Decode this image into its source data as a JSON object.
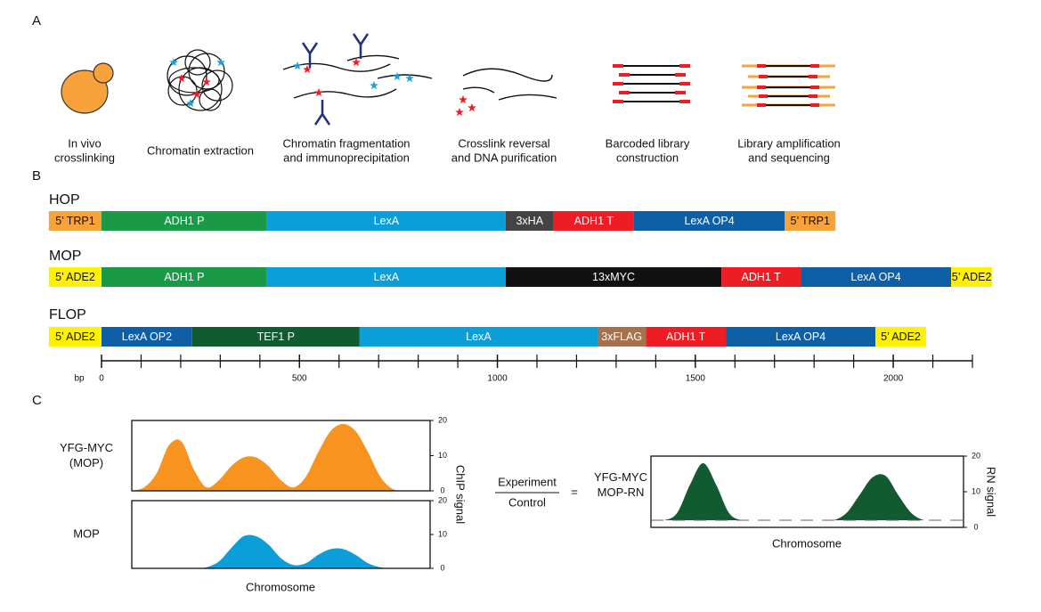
{
  "panels": {
    "a": "A",
    "b": "B",
    "c": "C"
  },
  "workflow": [
    {
      "lines": [
        "In vivo",
        "crosslinking"
      ]
    },
    {
      "lines": [
        "Chromatin extraction"
      ]
    },
    {
      "lines": [
        "Chromatin fragmentation",
        "and immunoprecipitation"
      ]
    },
    {
      "lines": [
        "Crosslink reversal",
        "and DNA purification"
      ]
    },
    {
      "lines": [
        "Barcoded library",
        "construction"
      ]
    },
    {
      "lines": [
        "Library amplification",
        "and sequencing"
      ]
    }
  ],
  "constructs": {
    "items": [
      {
        "name": "HOP",
        "segments": [
          {
            "label": "5’ TRP1",
            "start": -133,
            "end": 0,
            "color": "#f7a23b",
            "text_color": "#111"
          },
          {
            "label": "ADH1 P",
            "start": 0,
            "end": 418,
            "color": "#1a9a47",
            "text_color": "#fff"
          },
          {
            "label": "LexA",
            "start": 418,
            "end": 1021,
            "color": "#0b9ed9",
            "text_color": "#fff"
          },
          {
            "label": "3xHA",
            "start": 1021,
            "end": 1142,
            "color": "#444444",
            "text_color": "#fff"
          },
          {
            "label": "ADH1 T",
            "start": 1142,
            "end": 1345,
            "color": "#ee1c25",
            "text_color": "#fff"
          },
          {
            "label": "LexA OP4",
            "start": 1345,
            "end": 1726,
            "color": "#0f5fa6",
            "text_color": "#fff"
          },
          {
            "label": "5’ TRP1",
            "start": 1726,
            "end": 1854,
            "color": "#f7a23b",
            "text_color": "#111"
          }
        ]
      },
      {
        "name": "MOP",
        "segments": [
          {
            "label": "5’ ADE2",
            "start": -133,
            "end": 0,
            "color": "#fff200",
            "text_color": "#111"
          },
          {
            "label": "ADH1 P",
            "start": 0,
            "end": 418,
            "color": "#1a9a47",
            "text_color": "#fff"
          },
          {
            "label": "LexA",
            "start": 418,
            "end": 1021,
            "color": "#0b9ed9",
            "text_color": "#fff"
          },
          {
            "label": "13xMYC",
            "start": 1021,
            "end": 1566,
            "color": "#111111",
            "text_color": "#fff"
          },
          {
            "label": "ADH1 T",
            "start": 1566,
            "end": 1766,
            "color": "#ee1c25",
            "text_color": "#fff"
          },
          {
            "label": "LexA OP4",
            "start": 1766,
            "end": 2146,
            "color": "#0f5fa6",
            "text_color": "#fff"
          },
          {
            "label": "5’ ADE2",
            "start": 2146,
            "end": 2250,
            "color": "#fff200",
            "text_color": "#111"
          }
        ]
      },
      {
        "name": "FLOP",
        "segments": [
          {
            "label": "5’ ADE2",
            "start": -133,
            "end": 0,
            "color": "#fff200",
            "text_color": "#111"
          },
          {
            "label": "LexA OP2",
            "start": 0,
            "end": 229,
            "color": "#0f5fa6",
            "text_color": "#fff"
          },
          {
            "label": "TEF1 P",
            "start": 229,
            "end": 652,
            "color": "#125a2f",
            "text_color": "#fff"
          },
          {
            "label": "LexA",
            "start": 652,
            "end": 1253,
            "color": "#0b9ed9",
            "text_color": "#fff"
          },
          {
            "label": "3xFLAG",
            "start": 1253,
            "end": 1375,
            "color": "#a5724d",
            "text_color": "#fff"
          },
          {
            "label": "ADH1 T",
            "start": 1375,
            "end": 1577,
            "color": "#ee1c25",
            "text_color": "#fff"
          },
          {
            "label": "LexA OP4",
            "start": 1577,
            "end": 1955,
            "color": "#0f5fa6",
            "text_color": "#fff"
          },
          {
            "label": "5’ ADE2",
            "start": 1955,
            "end": 2083,
            "color": "#fff200",
            "text_color": "#111"
          }
        ]
      }
    ],
    "axis": {
      "label": "bp",
      "xlim": [
        0,
        2200
      ],
      "xticks": [
        0,
        500,
        1000,
        1500,
        2000
      ],
      "minor_ticks": [
        100,
        200,
        300,
        400,
        600,
        700,
        800,
        900,
        1100,
        1200,
        1300,
        1400,
        1600,
        1700,
        1800,
        1900,
        2100,
        2200
      ]
    }
  },
  "signal_plots": [
    {
      "label_lines": [
        "YFG-MYC",
        "(MOP)"
      ],
      "color": "#f7931e",
      "ylim": [
        0,
        20
      ],
      "yticks": [
        0,
        10,
        20
      ],
      "values": [
        0,
        1,
        5,
        13,
        14,
        6,
        1,
        3,
        7,
        9.5,
        9.5,
        7,
        3,
        1,
        4,
        11,
        17,
        19,
        17,
        11,
        4,
        0.5,
        0,
        0,
        0
      ]
    },
    {
      "label_lines": [
        "MOP"
      ],
      "color": "#0b9ed9",
      "ylim": [
        0,
        20
      ],
      "yticks": [
        0,
        10,
        20
      ],
      "values": [
        0,
        0,
        0,
        0,
        0,
        0,
        0.3,
        2,
        6,
        9.5,
        9.5,
        7,
        3,
        1,
        1.5,
        4,
        5.7,
        5.7,
        4,
        1.5,
        0.3,
        0,
        0,
        0,
        0
      ]
    },
    {
      "label_lines": [
        "YFG-MYC",
        "MOP-RN"
      ],
      "color": "#125a2f",
      "ylim": [
        0,
        20
      ],
      "yticks": [
        0,
        10,
        20
      ],
      "baseline": 2,
      "values": [
        2,
        2,
        4,
        12,
        18,
        12,
        4,
        2,
        2,
        2,
        2,
        2,
        2,
        2,
        2,
        4,
        9,
        14,
        14.5,
        9,
        4,
        2,
        2,
        2,
        2
      ]
    }
  ],
  "chip_ylabel": "ChIP signal",
  "rn_ylabel": "RN signal",
  "xlabel_left": "Chromosome",
  "xlabel_right": "Chromosome",
  "equation": {
    "numerator": "Experiment",
    "denominator": "Control",
    "equals": "="
  }
}
